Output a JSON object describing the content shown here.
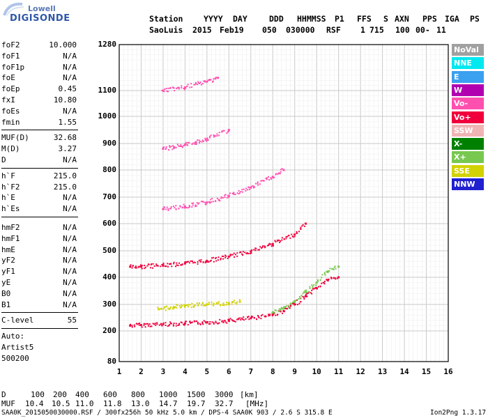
{
  "logo": {
    "line1": "Lowell",
    "line2": "DIGISONDE"
  },
  "header": {
    "labels": [
      "Station",
      "YYYY",
      "DAY",
      "DDD",
      "HHMMSS",
      "P1",
      "FFS",
      "S",
      "AXN",
      "PPS",
      "IGA",
      "PS"
    ],
    "values": [
      "SaoLuis",
      "2015",
      "Feb19",
      "050",
      "030000",
      "RSF",
      "1",
      "715",
      "100",
      "00-",
      "11"
    ]
  },
  "params": {
    "group1": [
      {
        "label": "foF2",
        "value": "10.000"
      },
      {
        "label": "foF1",
        "value": "N/A"
      },
      {
        "label": "foF1p",
        "value": "N/A"
      },
      {
        "label": "foE",
        "value": "N/A"
      },
      {
        "label": "foEp",
        "value": "0.45"
      },
      {
        "label": "fxI",
        "value": "10.80"
      },
      {
        "label": "foEs",
        "value": "N/A"
      },
      {
        "label": "fmin",
        "value": "1.55"
      }
    ],
    "group2": [
      {
        "label": "MUF(D)",
        "value": "32.68"
      },
      {
        "label": "M(D)",
        "value": "3.27"
      },
      {
        "label": "D",
        "value": "N/A"
      }
    ],
    "group3": [
      {
        "label": "h`F",
        "value": "215.0"
      },
      {
        "label": "h`F2",
        "value": "215.0"
      },
      {
        "label": "h`E",
        "value": "N/A"
      },
      {
        "label": "h`Es",
        "value": "N/A"
      }
    ],
    "group4": [
      {
        "label": "hmF2",
        "value": "N/A"
      },
      {
        "label": "hmF1",
        "value": "N/A"
      },
      {
        "label": "hmE",
        "value": "N/A"
      },
      {
        "label": "yF2",
        "value": "N/A"
      },
      {
        "label": "yF1",
        "value": "N/A"
      },
      {
        "label": "yE",
        "value": "N/A"
      },
      {
        "label": "B0",
        "value": "N/A"
      },
      {
        "label": "B1",
        "value": "N/A"
      }
    ],
    "group5": [
      {
        "label": "C-level",
        "value": "55"
      }
    ],
    "autoscaling": [
      "Auto:",
      "Artist5",
      "500200"
    ]
  },
  "legend": [
    {
      "label": "NoVal",
      "color": "#a0a0a0"
    },
    {
      "label": "NNE",
      "color": "#00e8f0"
    },
    {
      "label": "E",
      "color": "#3aa0f0"
    },
    {
      "label": "W",
      "color": "#b000b0"
    },
    {
      "label": "Vo-",
      "color": "#ff50b0"
    },
    {
      "label": "Vo+",
      "color": "#f0003c"
    },
    {
      "label": "SSW",
      "color": "#f0b4b4"
    },
    {
      "label": "X-",
      "color": "#008000"
    },
    {
      "label": "X+",
      "color": "#78c850"
    },
    {
      "label": "SSE",
      "color": "#d2d200"
    },
    {
      "label": "NNW",
      "color": "#2020d0"
    }
  ],
  "chart_data": {
    "type": "scatter",
    "title": "",
    "xlabel": "",
    "ylabel": "",
    "xlim": [
      1,
      16
    ],
    "ylim": [
      80,
      1280
    ],
    "x_ticks": [
      1,
      2,
      3,
      4,
      5,
      6,
      7,
      8,
      9,
      10,
      11,
      12,
      13,
      14,
      15,
      16
    ],
    "y_ticks": [
      80,
      200,
      300,
      400,
      500,
      600,
      700,
      800,
      900,
      1000,
      1100,
      1280
    ],
    "grid": true,
    "legend_position": "right",
    "series": [
      {
        "name": "Vo+",
        "color": "#f0003c",
        "trace": "F-layer first hop",
        "x": [
          1.5,
          2.0,
          3.0,
          4.0,
          5.0,
          6.0,
          7.0,
          8.0,
          8.5,
          9.0,
          9.5,
          10.0,
          10.5,
          11.0
        ],
        "y": [
          220,
          222,
          225,
          228,
          232,
          238,
          248,
          262,
          275,
          300,
          330,
          360,
          390,
          400
        ]
      },
      {
        "name": "Vo+",
        "color": "#f0003c",
        "trace": "second hop",
        "x": [
          1.5,
          2.0,
          3.0,
          4.0,
          5.0,
          6.0,
          7.0,
          8.0,
          9.0,
          9.5
        ],
        "y": [
          440,
          440,
          445,
          452,
          462,
          478,
          498,
          525,
          560,
          600
        ]
      },
      {
        "name": "Vo-",
        "color": "#ff50b0",
        "trace": "third hop",
        "x": [
          3.0,
          4.0,
          5.0,
          6.0,
          7.0,
          8.0,
          8.5
        ],
        "y": [
          655,
          665,
          680,
          705,
          735,
          775,
          800
        ]
      },
      {
        "name": "Vo-",
        "color": "#ff50b0",
        "trace": "fourth hop",
        "x": [
          3.0,
          3.5,
          4.0,
          4.5,
          5.0,
          6.0
        ],
        "y": [
          880,
          886,
          895,
          905,
          915,
          950
        ]
      },
      {
        "name": "Vo-",
        "color": "#ff50b0",
        "trace": "fifth hop",
        "x": [
          3.0,
          4.0,
          5.0,
          5.5
        ],
        "y": [
          1100,
          1112,
          1135,
          1150
        ]
      },
      {
        "name": "X+",
        "color": "#78c850",
        "trace": "extraordinary",
        "x": [
          8.0,
          8.5,
          9.0,
          9.5,
          10.0,
          10.5,
          11.0
        ],
        "y": [
          270,
          285,
          310,
          345,
          380,
          420,
          440
        ]
      },
      {
        "name": "SSE",
        "color": "#d2d200",
        "trace": "oblique",
        "x": [
          2.8,
          3.5,
          4.0,
          5.0,
          6.0,
          6.5
        ],
        "y": [
          282,
          290,
          295,
          300,
          305,
          310
        ]
      }
    ]
  },
  "footer": {
    "d_label": "D",
    "d_values": [
      "100",
      "200",
      "400",
      "600",
      "800",
      "1000",
      "1500",
      "3000",
      "[km]"
    ],
    "muf_label": "MUF",
    "muf_values": [
      "10.4",
      "10.5",
      "11.0",
      "11.8",
      "13.0",
      "14.7",
      "19.7",
      "32.7",
      "[MHz]"
    ],
    "file_info": "SAA0K_2015050030000.RSF / 300fx256h 50 kHz 5.0 km / DPS-4 SAA0K 903 / 2.6 S 315.8 E",
    "version": "Ion2Png 1.3.17"
  }
}
